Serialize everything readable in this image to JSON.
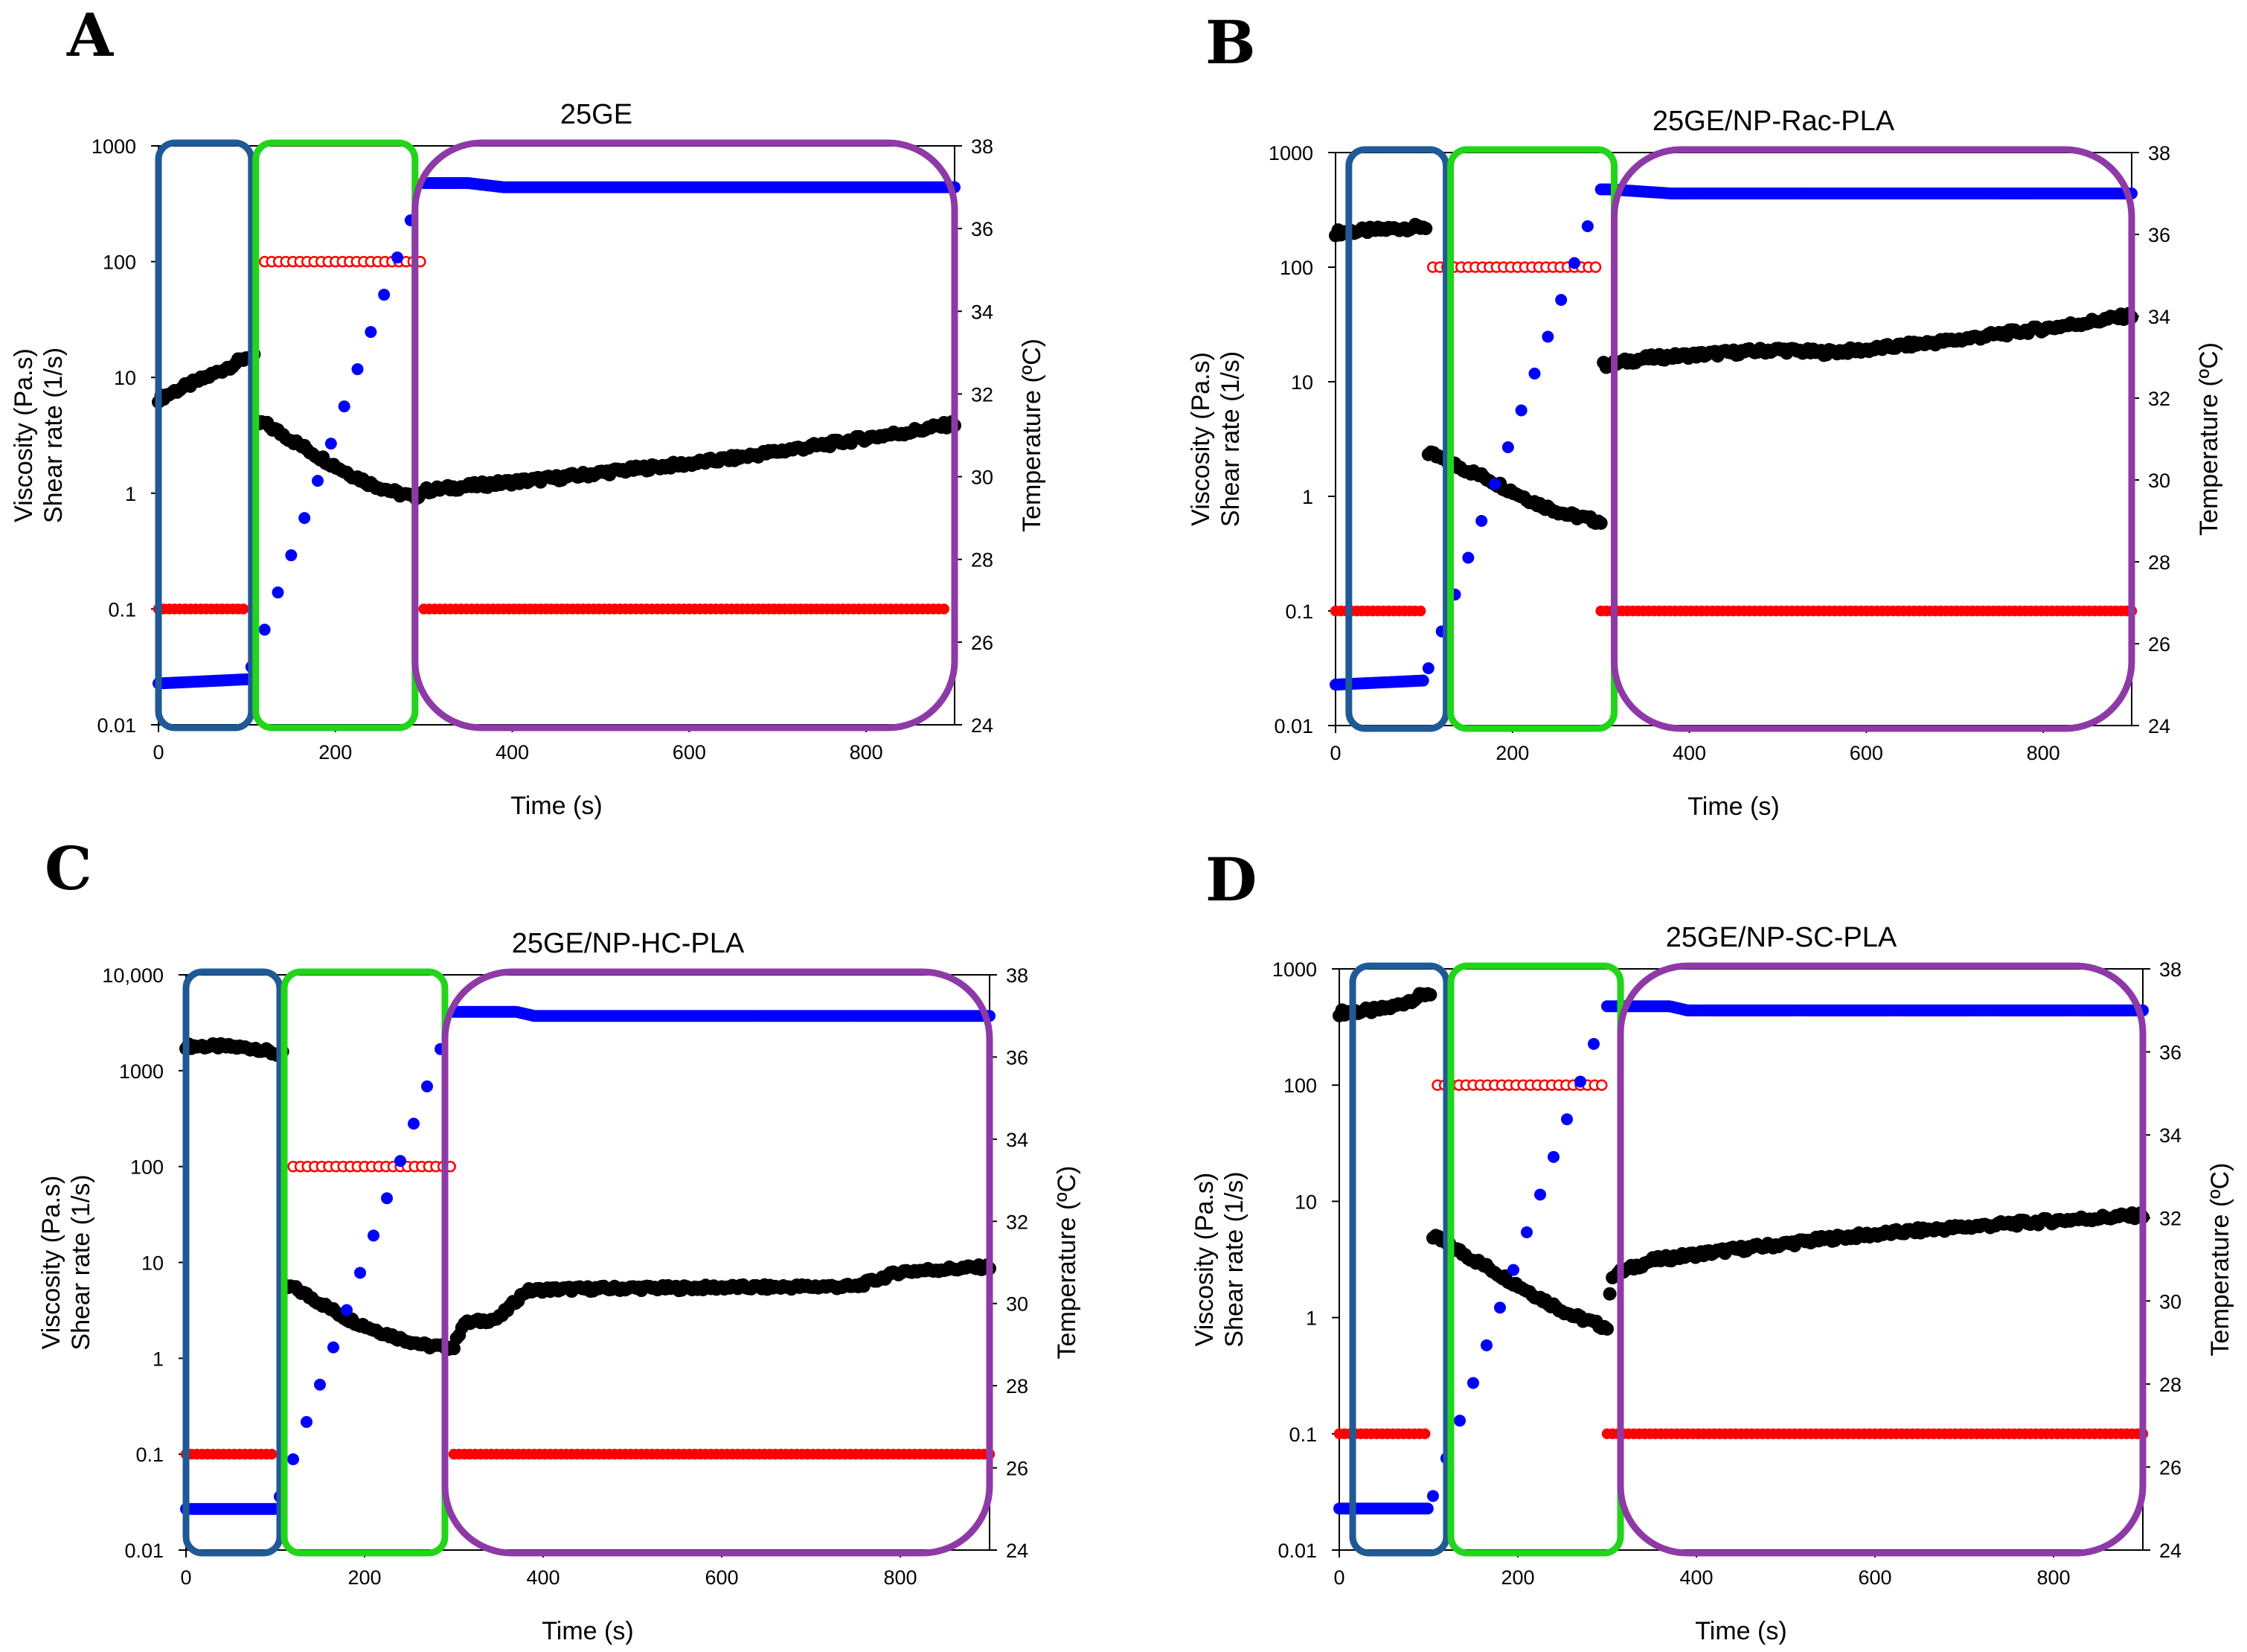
{
  "figure": {
    "x_label": "Time (s)",
    "y_left_labels": [
      "Viscosity (Pa.s)",
      "Shear rate (1/s)"
    ],
    "y_right_label": "Temperature (ºC)",
    "colors": {
      "viscosity": "#000000",
      "shear_rate": "#ff0000",
      "temperature": "#0000ff",
      "box_blue": "#1f5a96",
      "box_green": "#22d41a",
      "box_purple": "#8e3aa6"
    }
  },
  "chart_data": [
    {
      "panel": "A",
      "title": "25GE",
      "type": "scatter",
      "xlabel": "Time (s)",
      "ylabel": "Viscosity (Pa.s) / Shear rate (1/s)",
      "ylabel_right": "Temperature (ºC)",
      "xlim": [
        0,
        900
      ],
      "x_ticks": [
        0,
        200,
        400,
        600,
        800
      ],
      "y_left_log": true,
      "ylim_left": [
        0.01,
        1000
      ],
      "y_left_ticks": [
        "0.01",
        "0.1",
        "1",
        "10",
        "100",
        "1000"
      ],
      "ylim_right": [
        24,
        38
      ],
      "y_right_ticks": [
        "24",
        "26",
        "28",
        "30",
        "32",
        "34",
        "36",
        "38"
      ],
      "series": [
        {
          "name": "Viscosity",
          "axis": "left",
          "marker": "filled",
          "color": "#000000",
          "x": [
            0,
            20,
            40,
            60,
            80,
            100,
            120,
            150,
            180,
            210,
            240,
            270,
            290,
            300,
            350,
            400,
            450,
            500,
            550,
            600,
            650,
            700,
            750,
            800,
            850,
            900
          ],
          "y": [
            6.5,
            7.7,
            9.0,
            10.5,
            12.4,
            15,
            4.0,
            2.9,
            2.1,
            1.55,
            1.2,
            1.0,
            0.92,
            1.05,
            1.15,
            1.25,
            1.35,
            1.5,
            1.65,
            1.8,
            2.0,
            2.3,
            2.6,
            3.0,
            3.4,
            4.0
          ]
        },
        {
          "name": "Shear rate",
          "axis": "left",
          "marker": "open",
          "color": "#ff0000",
          "segments": [
            {
              "x": [
                0,
                100
              ],
              "y": [
                0.1,
                0.1
              ]
            },
            {
              "x": [
                120,
                300
              ],
              "y": [
                100,
                100
              ]
            },
            {
              "x": [
                300,
                890
              ],
              "y": [
                0.1,
                0.1
              ]
            }
          ]
        },
        {
          "name": "Temperature",
          "axis": "right",
          "marker": "filled",
          "color": "#0000ff",
          "x": [
            0,
            100,
            300,
            350,
            390,
            900
          ],
          "y": [
            25.0,
            25.1,
            37.1,
            37.1,
            37.0,
            37.0
          ]
        }
      ],
      "regions": [
        {
          "color": "#1f5a96",
          "x": [
            0,
            105
          ]
        },
        {
          "color": "#22d41a",
          "x": [
            110,
            290
          ]
        },
        {
          "color": "#8e3aa6",
          "x": [
            290,
            900
          ]
        }
      ]
    },
    {
      "panel": "B",
      "title": "25GE/NP-Rac-PLA",
      "type": "scatter",
      "xlabel": "Time (s)",
      "ylabel": "Viscosity (Pa.s) / Shear rate (1/s)",
      "ylabel_right": "Temperature (ºC)",
      "xlim": [
        0,
        900
      ],
      "x_ticks": [
        0,
        200,
        400,
        600,
        800
      ],
      "y_left_log": true,
      "ylim_left": [
        0.01,
        1000
      ],
      "y_left_ticks": [
        "0.01",
        "0.1",
        "1",
        "10",
        "100",
        "1000"
      ],
      "ylim_right": [
        24,
        38
      ],
      "y_right_ticks": [
        "24",
        "26",
        "28",
        "30",
        "32",
        "34",
        "36",
        "38"
      ],
      "series": [
        {
          "name": "Viscosity",
          "axis": "left",
          "marker": "filled",
          "color": "#000000",
          "x": [
            0,
            20,
            40,
            60,
            80,
            100,
            110,
            140,
            170,
            200,
            230,
            260,
            300,
            305,
            350,
            400,
            450,
            500,
            550,
            600,
            650,
            700,
            750,
            800,
            850,
            900
          ],
          "y": [
            200,
            205,
            210,
            215,
            220,
            225,
            2.3,
            1.8,
            1.45,
            1.1,
            0.85,
            0.7,
            0.6,
            14,
            16,
            17,
            18,
            19,
            18,
            19,
            21,
            23,
            26,
            29,
            33,
            38
          ]
        },
        {
          "name": "Shear rate",
          "axis": "left",
          "marker": "open",
          "color": "#ff0000",
          "segments": [
            {
              "x": [
                0,
                100
              ],
              "y": [
                0.1,
                0.1
              ]
            },
            {
              "x": [
                110,
                300
              ],
              "y": [
                100,
                100
              ]
            },
            {
              "x": [
                300,
                900
              ],
              "y": [
                0.1,
                0.1
              ]
            }
          ]
        },
        {
          "name": "Temperature",
          "axis": "right",
          "marker": "filled",
          "color": "#0000ff",
          "x": [
            0,
            100,
            300,
            310,
            380,
            900
          ],
          "y": [
            25.0,
            25.1,
            37.1,
            37.1,
            37.0,
            37.0
          ]
        }
      ],
      "regions": [
        {
          "color": "#1f5a96",
          "x": [
            15,
            125
          ]
        },
        {
          "color": "#22d41a",
          "x": [
            130,
            315
          ]
        },
        {
          "color": "#8e3aa6",
          "x": [
            315,
            900
          ]
        }
      ]
    },
    {
      "panel": "C",
      "title": "25GE/NP-HC-PLA",
      "type": "scatter",
      "xlabel": "Time (s)",
      "ylabel": "Viscosity (Pa.s) / Shear rate (1/s)",
      "ylabel_right": "Temperature (ºC)",
      "xlim": [
        0,
        900
      ],
      "x_ticks": [
        0,
        200,
        400,
        600,
        800
      ],
      "y_left_log": true,
      "ylim_left": [
        0.01,
        10000
      ],
      "y_left_ticks": [
        "0.01",
        "0.1",
        "1",
        "10",
        "100",
        "1000",
        "10,000"
      ],
      "ylim_right": [
        24,
        38
      ],
      "y_right_ticks": [
        "24",
        "26",
        "28",
        "30",
        "32",
        "34",
        "36",
        "38"
      ],
      "series": [
        {
          "name": "Viscosity",
          "axis": "left",
          "marker": "filled",
          "color": "#000000",
          "x": [
            0,
            20,
            40,
            60,
            80,
            100,
            120,
            150,
            180,
            210,
            240,
            270,
            300,
            310,
            350,
            380,
            400,
            450,
            500,
            550,
            600,
            650,
            700,
            750,
            800,
            850,
            900
          ],
          "y": [
            1800,
            1800,
            1800,
            1750,
            1700,
            1500,
            5.5,
            3.8,
            2.6,
            2.0,
            1.6,
            1.35,
            1.3,
            2.3,
            2.6,
            5.0,
            5.2,
            5.3,
            5.4,
            5.4,
            5.5,
            5.5,
            5.6,
            5.6,
            8.0,
            8.5,
            9.0
          ]
        },
        {
          "name": "Shear rate",
          "axis": "left",
          "marker": "open",
          "color": "#ff0000",
          "segments": [
            {
              "x": [
                0,
                100
              ],
              "y": [
                0.1,
                0.1
              ]
            },
            {
              "x": [
                120,
                300
              ],
              "y": [
                100,
                100
              ]
            },
            {
              "x": [
                300,
                900
              ],
              "y": [
                0.1,
                0.1
              ]
            }
          ]
        },
        {
          "name": "Temperature",
          "axis": "right",
          "marker": "filled",
          "color": "#0000ff",
          "x": [
            0,
            100,
            300,
            370,
            390,
            900
          ],
          "y": [
            25.0,
            25.0,
            37.1,
            37.1,
            37.0,
            37.0
          ]
        }
      ],
      "regions": [
        {
          "color": "#1f5a96",
          "x": [
            0,
            105
          ]
        },
        {
          "color": "#22d41a",
          "x": [
            110,
            290
          ]
        },
        {
          "color": "#8e3aa6",
          "x": [
            290,
            900
          ]
        }
      ]
    },
    {
      "panel": "D",
      "title": "25GE/NP-SC-PLA",
      "type": "scatter",
      "xlabel": "Time (s)",
      "ylabel": "Viscosity (Pa.s) / Shear rate (1/s)",
      "ylabel_right": "Temperature (ºC)",
      "xlim": [
        0,
        900
      ],
      "x_ticks": [
        0,
        200,
        400,
        600,
        800
      ],
      "y_left_log": true,
      "ylim_left": [
        0.01,
        1000
      ],
      "y_left_ticks": [
        "0.01",
        "0.1",
        "1",
        "10",
        "100",
        "1000"
      ],
      "ylim_right": [
        24,
        38
      ],
      "y_right_ticks": [
        "24",
        "26",
        "28",
        "30",
        "32",
        "34",
        "36",
        "38"
      ],
      "series": [
        {
          "name": "Viscosity",
          "axis": "left",
          "marker": "filled",
          "color": "#000000",
          "x": [
            0,
            20,
            40,
            60,
            80,
            100,
            110,
            140,
            170,
            200,
            230,
            260,
            300,
            305,
            350,
            400,
            450,
            500,
            550,
            600,
            650,
            700,
            750,
            800,
            850,
            900
          ],
          "y": [
            420,
            430,
            440,
            470,
            540,
            620,
            4.8,
            3.5,
            2.6,
            1.9,
            1.4,
            1.05,
            0.82,
            2.3,
            3.1,
            3.5,
            3.9,
            4.3,
            4.8,
            5.2,
            5.6,
            6.0,
            6.4,
            6.8,
            7.2,
            7.6
          ]
        },
        {
          "name": "Shear rate",
          "axis": "left",
          "marker": "open",
          "color": "#ff0000",
          "segments": [
            {
              "x": [
                0,
                100
              ],
              "y": [
                0.1,
                0.1
              ]
            },
            {
              "x": [
                110,
                300
              ],
              "y": [
                100,
                100
              ]
            },
            {
              "x": [
                300,
                900
              ],
              "y": [
                0.1,
                0.1
              ]
            }
          ]
        },
        {
          "name": "Temperature",
          "axis": "right",
          "marker": "filled",
          "color": "#0000ff",
          "x": [
            0,
            100,
            300,
            370,
            390,
            900
          ],
          "y": [
            25.0,
            25.0,
            37.1,
            37.1,
            37.0,
            37.0
          ]
        }
      ],
      "regions": [
        {
          "color": "#1f5a96",
          "x": [
            15,
            120
          ]
        },
        {
          "color": "#22d41a",
          "x": [
            125,
            315
          ]
        },
        {
          "color": "#8e3aa6",
          "x": [
            315,
            900
          ]
        }
      ]
    }
  ]
}
